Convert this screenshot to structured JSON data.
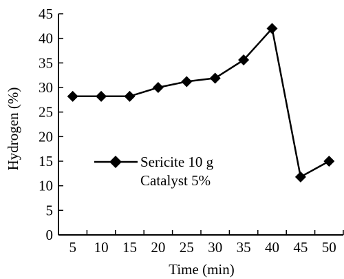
{
  "chart_data": {
    "type": "line",
    "title": "",
    "xlabel": "Time (min)",
    "ylabel": "Hydrogen (%)",
    "x": [
      5,
      10,
      15,
      20,
      25,
      30,
      35,
      40,
      45,
      50
    ],
    "xticks": [
      "5",
      "10",
      "15",
      "20",
      "25",
      "30",
      "35",
      "40",
      "45",
      "50"
    ],
    "yticks": [
      "0",
      "5",
      "10",
      "15",
      "20",
      "25",
      "30",
      "35",
      "40",
      "45"
    ],
    "xlim": [
      2.5,
      52.5
    ],
    "ylim": [
      0,
      45
    ],
    "grid": false,
    "legend_position": "left-middle",
    "series": [
      {
        "name_lines": [
          "Sericite 10 g",
          "Catalyst 5%"
        ],
        "marker": "diamond",
        "color": "#000000",
        "values": [
          28.2,
          28.2,
          28.2,
          30.0,
          31.2,
          31.9,
          35.6,
          42.0,
          11.8,
          15.0
        ]
      }
    ]
  }
}
